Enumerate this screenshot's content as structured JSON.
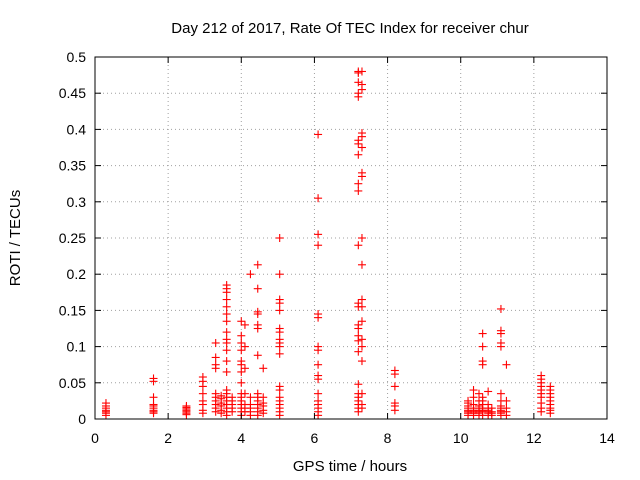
{
  "chart_data": {
    "type": "scatter",
    "title": "Day 212 of 2017, Rate Of TEC Index for receiver chur",
    "xlabel": "GPS time / hours",
    "ylabel": "ROTI / TECUs",
    "xlim": [
      0,
      14
    ],
    "ylim": [
      0,
      0.5
    ],
    "xticks": [
      0,
      2,
      4,
      6,
      8,
      10,
      12,
      14
    ],
    "xtick_labels": [
      "0",
      "2",
      "4",
      "6",
      "8",
      "10",
      "12",
      "14"
    ],
    "yticks": [
      0,
      0.05,
      0.1,
      0.15,
      0.2,
      0.25,
      0.3,
      0.35,
      0.4,
      0.45,
      0.5
    ],
    "ytick_labels": [
      "0",
      "0.05",
      "0.1",
      "0.15",
      "0.2",
      "0.25",
      "0.3",
      "0.35",
      "0.4",
      "0.45",
      "0.5"
    ],
    "grid": true,
    "marker": "+",
    "color": "#ff0000",
    "clusters": [
      {
        "x": 0.3,
        "y": [
          0.005,
          0.008,
          0.01,
          0.012,
          0.015,
          0.018,
          0.022
        ]
      },
      {
        "x": 1.6,
        "y": [
          0.008,
          0.01,
          0.012,
          0.015,
          0.018,
          0.02,
          0.03,
          0.052,
          0.056
        ]
      },
      {
        "x": 2.5,
        "y": [
          0.006,
          0.008,
          0.01,
          0.012,
          0.014,
          0.016,
          0.018
        ]
      },
      {
        "x": 2.95,
        "y": [
          0.008,
          0.012,
          0.02,
          0.025,
          0.035,
          0.045,
          0.052,
          0.058
        ]
      },
      {
        "x": 3.3,
        "y": [
          0.01,
          0.015,
          0.02,
          0.025,
          0.03,
          0.035,
          0.07,
          0.075,
          0.085,
          0.105
        ]
      },
      {
        "x": 3.45,
        "y": [
          0.008,
          0.012,
          0.018,
          0.022,
          0.028,
          0.032
        ]
      },
      {
        "x": 3.6,
        "y": [
          0.005,
          0.01,
          0.015,
          0.02,
          0.025,
          0.03,
          0.035,
          0.04,
          0.065,
          0.08,
          0.095,
          0.105,
          0.11,
          0.12,
          0.135,
          0.145,
          0.155,
          0.165,
          0.175,
          0.18,
          0.185
        ]
      },
      {
        "x": 3.75,
        "y": [
          0.01,
          0.015,
          0.02,
          0.025,
          0.03
        ]
      },
      {
        "x": 4.0,
        "y": [
          0.005,
          0.01,
          0.015,
          0.02,
          0.025,
          0.03,
          0.035,
          0.05,
          0.065,
          0.075,
          0.08,
          0.095,
          0.105,
          0.115,
          0.135
        ]
      },
      {
        "x": 4.1,
        "y": [
          0.01,
          0.015,
          0.02,
          0.035,
          0.07,
          0.1,
          0.13
        ]
      },
      {
        "x": 4.25,
        "y": [
          0.005,
          0.01,
          0.015,
          0.02,
          0.03,
          0.2
        ]
      },
      {
        "x": 4.45,
        "y": [
          0.005,
          0.01,
          0.015,
          0.02,
          0.025,
          0.03,
          0.035,
          0.088,
          0.125,
          0.13,
          0.145,
          0.148,
          0.18,
          0.213
        ]
      },
      {
        "x": 4.6,
        "y": [
          0.008,
          0.012,
          0.018,
          0.022,
          0.03,
          0.07
        ]
      },
      {
        "x": 5.05,
        "y": [
          0.005,
          0.01,
          0.015,
          0.02,
          0.025,
          0.03,
          0.04,
          0.045,
          0.09,
          0.1,
          0.105,
          0.11,
          0.12,
          0.125,
          0.15,
          0.16,
          0.165,
          0.2,
          0.25
        ]
      },
      {
        "x": 6.1,
        "y": [
          0.005,
          0.01,
          0.015,
          0.02,
          0.025,
          0.035,
          0.055,
          0.06,
          0.075,
          0.095,
          0.1,
          0.14,
          0.145,
          0.24,
          0.255,
          0.305,
          0.393
        ]
      },
      {
        "x": 7.2,
        "y": [
          0.01,
          0.015,
          0.02,
          0.025,
          0.03,
          0.035,
          0.048,
          0.093,
          0.108,
          0.115,
          0.125,
          0.13,
          0.155,
          0.16,
          0.24,
          0.315,
          0.325,
          0.365,
          0.38,
          0.385,
          0.445,
          0.45,
          0.465,
          0.478,
          0.48
        ]
      },
      {
        "x": 7.3,
        "y": [
          0.015,
          0.02,
          0.035,
          0.08,
          0.1,
          0.11,
          0.135,
          0.155,
          0.165,
          0.213,
          0.25,
          0.335,
          0.34,
          0.375,
          0.39,
          0.395,
          0.455,
          0.462,
          0.48
        ]
      },
      {
        "x": 8.2,
        "y": [
          0.012,
          0.018,
          0.022,
          0.045,
          0.062,
          0.067
        ]
      },
      {
        "x": 10.2,
        "y": [
          0.005,
          0.008,
          0.01,
          0.012,
          0.015,
          0.018,
          0.022,
          0.025
        ]
      },
      {
        "x": 10.35,
        "y": [
          0.005,
          0.008,
          0.01,
          0.012,
          0.015,
          0.02,
          0.03,
          0.04
        ]
      },
      {
        "x": 10.5,
        "y": [
          0.005,
          0.008,
          0.01,
          0.012,
          0.015,
          0.018,
          0.025,
          0.035
        ]
      },
      {
        "x": 10.6,
        "y": [
          0.005,
          0.01,
          0.012,
          0.015,
          0.02,
          0.025,
          0.03,
          0.075,
          0.08,
          0.1,
          0.118
        ]
      },
      {
        "x": 10.75,
        "y": [
          0.005,
          0.008,
          0.01,
          0.012,
          0.015,
          0.02,
          0.038
        ]
      },
      {
        "x": 10.85,
        "y": [
          0.005,
          0.008,
          0.01,
          0.015
        ]
      },
      {
        "x": 11.1,
        "y": [
          0.005,
          0.008,
          0.01,
          0.012,
          0.015,
          0.018,
          0.025,
          0.035,
          0.1,
          0.105,
          0.118,
          0.122,
          0.152
        ]
      },
      {
        "x": 11.25,
        "y": [
          0.005,
          0.01,
          0.015,
          0.025,
          0.075
        ]
      },
      {
        "x": 12.2,
        "y": [
          0.01,
          0.015,
          0.022,
          0.03,
          0.035,
          0.04,
          0.045,
          0.05,
          0.055,
          0.06
        ]
      },
      {
        "x": 12.45,
        "y": [
          0.008,
          0.012,
          0.015,
          0.02,
          0.025,
          0.03,
          0.035,
          0.04,
          0.045
        ]
      }
    ]
  }
}
